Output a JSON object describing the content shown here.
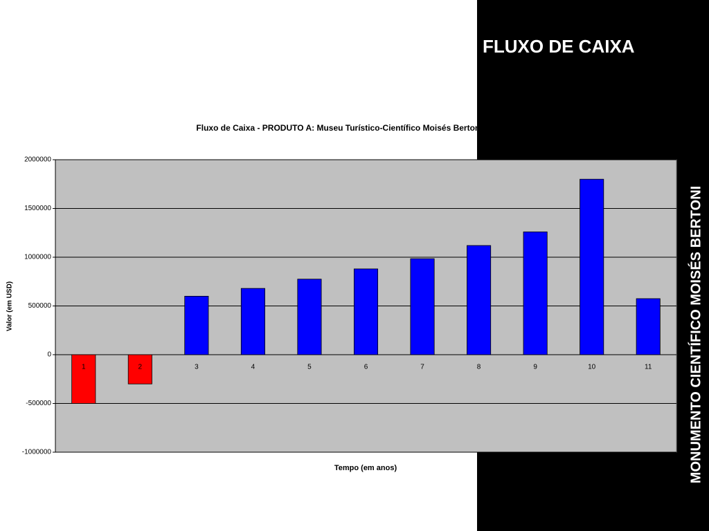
{
  "slide": {
    "title": "FLUXO DE CAIXA",
    "side_text": "MONUMENTO CIENTÍFICO MOISÉS BERTONI"
  },
  "chart_data": {
    "type": "bar",
    "title": "Fluxo de Caixa - PRODUTO A: Museu Turístico-Científico Moisés Bertoni",
    "x_label": "Tempo (em anos)",
    "y_label": "Valor (em USD)",
    "categories": [
      "1",
      "2",
      "3",
      "4",
      "5",
      "6",
      "7",
      "8",
      "9",
      "10",
      "11"
    ],
    "values": [
      -500000,
      -300000,
      600000,
      680000,
      775000,
      880000,
      985000,
      1120000,
      1260000,
      1800000,
      575000
    ],
    "colors": [
      "#ff0000",
      "#ff0000",
      "#0000ff",
      "#0000ff",
      "#0000ff",
      "#0000ff",
      "#0000ff",
      "#0000ff",
      "#0000ff",
      "#0000ff",
      "#0000ff"
    ],
    "ylim": [
      -1000000,
      2000000
    ],
    "yticks": [
      -1000000,
      -500000,
      0,
      500000,
      1000000,
      1500000,
      2000000
    ],
    "grid": true,
    "plot_background": "#c0c0c0"
  }
}
